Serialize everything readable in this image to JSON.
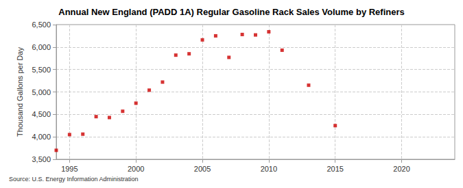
{
  "chart_data": {
    "type": "scatter",
    "title": "Annual New England (PADD 1A) Regular Gasoline Rack Sales Volume by Refiners",
    "y_label": "Thousand Gallons per Day",
    "source": "Source: U.S. Energy Information Administration",
    "x": [
      1994,
      1995,
      1996,
      1997,
      1998,
      1999,
      2000,
      2001,
      2002,
      2003,
      2004,
      2005,
      2006,
      2007,
      2008,
      2009,
      2010,
      2011,
      2013,
      2015
    ],
    "values": [
      3700,
      4050,
      4060,
      4450,
      4430,
      4570,
      4750,
      5040,
      5220,
      5820,
      5850,
      6160,
      6250,
      5770,
      6280,
      6270,
      6340,
      5930,
      5150,
      4250
    ],
    "color": "#cc0000",
    "marker": "square",
    "xlim": [
      1994,
      2024
    ],
    "xticks": [
      1995,
      2000,
      2005,
      2010,
      2015,
      2020
    ],
    "ylim": [
      3500,
      6500
    ],
    "yticks": [
      {
        "value": 3500,
        "label": "3,500"
      },
      {
        "value": 4000,
        "label": "4,000"
      },
      {
        "value": 4500,
        "label": "4,500"
      },
      {
        "value": 5000,
        "label": "5,000"
      },
      {
        "value": 5500,
        "label": "5,500"
      },
      {
        "value": 6000,
        "label": "6,000"
      },
      {
        "value": 6500,
        "label": "6,500"
      }
    ],
    "grid": true
  }
}
